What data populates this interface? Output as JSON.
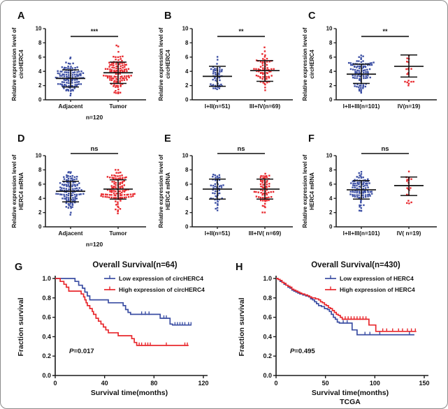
{
  "figure": {
    "panel_labels": [
      "A",
      "B",
      "C",
      "D",
      "E",
      "F",
      "G",
      "H"
    ]
  },
  "colors": {
    "blue": "#3B4EA3",
    "red": "#E8282D",
    "axis": "#1a1a1a"
  },
  "chart_data": [
    {
      "type": "scatter",
      "panel_label": "A",
      "ylabel": [
        "Relative expression level of",
        "circHERC4"
      ],
      "ylim": [
        0,
        10
      ],
      "yticks": [
        0,
        2,
        4,
        6,
        8,
        10
      ],
      "significance": "***",
      "sig_y": 8.9,
      "xnote": "n=120",
      "groups": [
        {
          "label": "Adjacent",
          "color_key": "blue",
          "n": 120,
          "mean": 3.0,
          "err_low": 1.8,
          "err_high": 4.2,
          "min": 0.3,
          "max": 7.0
        },
        {
          "label": "Tumor",
          "color_key": "red",
          "n": 120,
          "mean": 3.8,
          "err_low": 2.3,
          "err_high": 5.3,
          "min": 0.9,
          "max": 8.0
        }
      ]
    },
    {
      "type": "scatter",
      "panel_label": "B",
      "ylabel": [
        "Relative expression level of",
        "circHERC4"
      ],
      "ylim": [
        0,
        10
      ],
      "yticks": [
        0,
        2,
        4,
        6,
        8,
        10
      ],
      "significance": "**",
      "sig_y": 8.9,
      "xnote": null,
      "groups": [
        {
          "label": "I+II(n=51)",
          "color_key": "blue",
          "n": 51,
          "mean": 3.3,
          "err_low": 1.9,
          "err_high": 4.7,
          "min": 0.8,
          "max": 6.8
        },
        {
          "label": "III+IV(n=69)",
          "color_key": "red",
          "n": 69,
          "mean": 4.1,
          "err_low": 2.6,
          "err_high": 5.5,
          "min": 1.0,
          "max": 8.0
        }
      ]
    },
    {
      "type": "scatter",
      "panel_label": "C",
      "ylabel": [
        "Relative expression level of",
        "circHERC4"
      ],
      "ylim": [
        0,
        10
      ],
      "yticks": [
        0,
        2,
        4,
        6,
        8,
        10
      ],
      "significance": "**",
      "sig_y": 8.9,
      "xnote": null,
      "groups": [
        {
          "label": "I+II+III(n=101)",
          "color_key": "blue",
          "n": 101,
          "mean": 3.6,
          "err_low": 2.3,
          "err_high": 5.0,
          "min": 0.6,
          "max": 6.7
        },
        {
          "label": "IV(n=19)",
          "color_key": "red",
          "n": 19,
          "mean": 4.7,
          "err_low": 3.2,
          "err_high": 6.3,
          "min": 1.8,
          "max": 8.0
        }
      ]
    },
    {
      "type": "scatter",
      "panel_label": "D",
      "ylabel": [
        "Relative expression level of",
        "HERC4 mRNA"
      ],
      "ylim": [
        0,
        10
      ],
      "yticks": [
        0,
        2,
        4,
        6,
        8,
        10
      ],
      "significance": "ns",
      "sig_y": 10.3,
      "xnote": "n=120",
      "groups": [
        {
          "label": "Adjacent",
          "color_key": "blue",
          "n": 120,
          "mean": 5.0,
          "err_low": 3.5,
          "err_high": 6.4,
          "min": 1.4,
          "max": 7.9
        },
        {
          "label": "Tumor",
          "color_key": "red",
          "n": 120,
          "mean": 5.3,
          "err_low": 3.9,
          "err_high": 6.6,
          "min": 1.6,
          "max": 8.1
        }
      ]
    },
    {
      "type": "scatter",
      "panel_label": "E",
      "ylabel": [
        "Relative expression level of",
        "HERC4 mRNA"
      ],
      "ylim": [
        0,
        10
      ],
      "yticks": [
        0,
        2,
        4,
        6,
        8,
        10
      ],
      "significance": "ns",
      "sig_y": 10.3,
      "xnote": null,
      "groups": [
        {
          "label": "I+II(n=51)",
          "color_key": "blue",
          "n": 51,
          "mean": 5.3,
          "err_low": 3.9,
          "err_high": 6.7,
          "min": 1.7,
          "max": 8.0
        },
        {
          "label": "III+IV( n=69)",
          "color_key": "red",
          "n": 69,
          "mean": 5.3,
          "err_low": 3.9,
          "err_high": 6.7,
          "min": 1.7,
          "max": 7.9
        }
      ]
    },
    {
      "type": "scatter",
      "panel_label": "F",
      "ylabel": [
        "Relative expression level of",
        "HERC4 mRNA"
      ],
      "ylim": [
        0,
        10
      ],
      "yticks": [
        0,
        2,
        4,
        6,
        8,
        10
      ],
      "significance": "ns",
      "sig_y": 10.3,
      "xnote": null,
      "groups": [
        {
          "label": "I+II+III(n=101)",
          "color_key": "blue",
          "n": 101,
          "mean": 5.2,
          "err_low": 3.9,
          "err_high": 6.5,
          "min": 1.6,
          "max": 7.9
        },
        {
          "label": "IV( n=19)",
          "color_key": "red",
          "n": 19,
          "mean": 5.8,
          "err_low": 4.4,
          "err_high": 7.0,
          "min": 3.2,
          "max": 7.9
        }
      ]
    },
    {
      "type": "km",
      "panel_label": "G",
      "title": "Overall Survival(n=64)",
      "xlabel": "Survival time(months)",
      "sublabel": null,
      "ylabel": "Fraction survival",
      "xlim": [
        0,
        120
      ],
      "xticks": [
        0,
        40,
        80,
        120
      ],
      "ylim": [
        0,
        1
      ],
      "yticks": [
        0.0,
        0.2,
        0.4,
        0.6,
        0.8,
        1.0
      ],
      "p_symbol": "P",
      "p_value": "=0.017",
      "series": [
        {
          "name": "Low expression of circHERC4",
          "color_key": "blue",
          "end": 110,
          "events": [
            [
              16,
              0.97
            ],
            [
              19,
              0.93
            ],
            [
              22,
              0.9
            ],
            [
              24,
              0.86
            ],
            [
              26,
              0.82
            ],
            [
              28,
              0.78
            ],
            [
              43,
              0.75
            ],
            [
              55,
              0.72
            ],
            [
              57,
              0.68
            ],
            [
              59,
              0.65
            ],
            [
              61,
              0.63
            ],
            [
              85,
              0.59
            ],
            [
              93,
              0.53
            ],
            [
              95,
              0.52
            ]
          ],
          "censors": [
            [
              70,
              0.63
            ],
            [
              73,
              0.63
            ],
            [
              76,
              0.63
            ],
            [
              88,
              0.59
            ],
            [
              90,
              0.59
            ],
            [
              97,
              0.52
            ],
            [
              99,
              0.52
            ],
            [
              101,
              0.52
            ],
            [
              103,
              0.52
            ],
            [
              105,
              0.52
            ],
            [
              108,
              0.52
            ],
            [
              110,
              0.52
            ]
          ]
        },
        {
          "name": "High expression of circHERC4",
          "color_key": "red",
          "end": 108,
          "events": [
            [
              4,
              0.97
            ],
            [
              7,
              0.94
            ],
            [
              9,
              0.91
            ],
            [
              11,
              0.87
            ],
            [
              21,
              0.84
            ],
            [
              23,
              0.81
            ],
            [
              24,
              0.78
            ],
            [
              25,
              0.75
            ],
            [
              26,
              0.72
            ],
            [
              28,
              0.69
            ],
            [
              30,
              0.66
            ],
            [
              31,
              0.63
            ],
            [
              33,
              0.59
            ],
            [
              35,
              0.56
            ],
            [
              37,
              0.53
            ],
            [
              39,
              0.5
            ],
            [
              41,
              0.47
            ],
            [
              43,
              0.44
            ],
            [
              51,
              0.41
            ],
            [
              62,
              0.38
            ],
            [
              64,
              0.34
            ],
            [
              66,
              0.31
            ]
          ],
          "censors": [
            [
              68,
              0.31
            ],
            [
              70,
              0.31
            ],
            [
              73,
              0.31
            ],
            [
              75,
              0.31
            ],
            [
              77,
              0.31
            ],
            [
              90,
              0.31
            ],
            [
              105,
              0.31
            ],
            [
              107,
              0.31
            ]
          ]
        }
      ]
    },
    {
      "type": "km",
      "panel_label": "H",
      "title": "Overall Survival(n=430)",
      "xlabel": "Survival time(months)",
      "sublabel": "TCGA",
      "ylabel": "Fraction survival",
      "xlim": [
        0,
        150
      ],
      "xticks": [
        0,
        50,
        100,
        150
      ],
      "ylim": [
        0,
        1
      ],
      "yticks": [
        0.0,
        0.2,
        0.4,
        0.6,
        0.8,
        1.0
      ],
      "p_symbol": "P",
      "p_value": "=0.495",
      "series": [
        {
          "name": "Low expression of HERC4",
          "color_key": "blue",
          "end": 140,
          "events": [
            [
              2,
              0.99
            ],
            [
              4,
              0.97
            ],
            [
              6,
              0.96
            ],
            [
              8,
              0.94
            ],
            [
              10,
              0.93
            ],
            [
              12,
              0.91
            ],
            [
              14,
              0.9
            ],
            [
              16,
              0.88
            ],
            [
              18,
              0.87
            ],
            [
              20,
              0.86
            ],
            [
              22,
              0.85
            ],
            [
              24,
              0.84
            ],
            [
              27,
              0.83
            ],
            [
              30,
              0.82
            ],
            [
              33,
              0.81
            ],
            [
              35,
              0.79
            ],
            [
              37,
              0.78
            ],
            [
              39,
              0.76
            ],
            [
              41,
              0.74
            ],
            [
              43,
              0.72
            ],
            [
              46,
              0.71
            ],
            [
              49,
              0.69
            ],
            [
              52,
              0.68
            ],
            [
              54,
              0.66
            ],
            [
              56,
              0.63
            ],
            [
              58,
              0.6
            ],
            [
              60,
              0.58
            ],
            [
              62,
              0.55
            ],
            [
              64,
              0.54
            ],
            [
              77,
              0.47
            ],
            [
              82,
              0.42
            ]
          ],
          "censors": [
            [
              68,
              0.54
            ],
            [
              72,
              0.54
            ],
            [
              90,
              0.42
            ],
            [
              95,
              0.42
            ],
            [
              105,
              0.42
            ],
            [
              135,
              0.42
            ]
          ]
        },
        {
          "name": "High expression of HERC4",
          "color_key": "red",
          "end": 142,
          "events": [
            [
              2,
              0.99
            ],
            [
              4,
              0.98
            ],
            [
              6,
              0.96
            ],
            [
              8,
              0.95
            ],
            [
              10,
              0.93
            ],
            [
              12,
              0.92
            ],
            [
              14,
              0.91
            ],
            [
              16,
              0.89
            ],
            [
              18,
              0.88
            ],
            [
              20,
              0.87
            ],
            [
              22,
              0.86
            ],
            [
              24,
              0.85
            ],
            [
              26,
              0.84
            ],
            [
              29,
              0.83
            ],
            [
              32,
              0.82
            ],
            [
              34,
              0.81
            ],
            [
              36,
              0.8
            ],
            [
              40,
              0.79
            ],
            [
              43,
              0.78
            ],
            [
              45,
              0.76
            ],
            [
              47,
              0.75
            ],
            [
              49,
              0.73
            ],
            [
              51,
              0.72
            ],
            [
              53,
              0.7
            ],
            [
              55,
              0.69
            ],
            [
              57,
              0.67
            ],
            [
              59,
              0.65
            ],
            [
              61,
              0.63
            ],
            [
              63,
              0.62
            ],
            [
              65,
              0.6
            ],
            [
              67,
              0.58
            ],
            [
              94,
              0.52
            ],
            [
              101,
              0.455
            ]
          ],
          "censors": [
            [
              70,
              0.58
            ],
            [
              73,
              0.58
            ],
            [
              76,
              0.58
            ],
            [
              79,
              0.58
            ],
            [
              82,
              0.58
            ],
            [
              85,
              0.58
            ],
            [
              88,
              0.58
            ],
            [
              91,
              0.58
            ],
            [
              108,
              0.455
            ],
            [
              112,
              0.455
            ],
            [
              118,
              0.455
            ],
            [
              124,
              0.455
            ],
            [
              128,
              0.455
            ],
            [
              133,
              0.455
            ],
            [
              137,
              0.455
            ],
            [
              141,
              0.455
            ]
          ]
        }
      ]
    }
  ]
}
